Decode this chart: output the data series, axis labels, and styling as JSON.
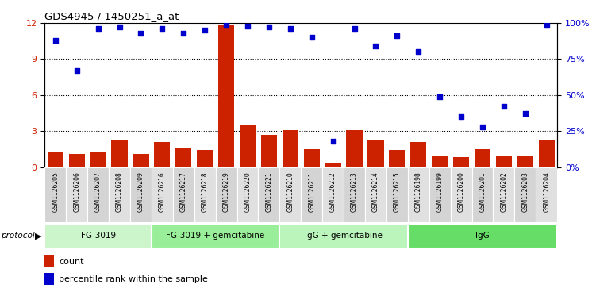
{
  "title": "GDS4945 / 1450251_a_at",
  "samples": [
    "GSM1126205",
    "GSM1126206",
    "GSM1126207",
    "GSM1126208",
    "GSM1126209",
    "GSM1126216",
    "GSM1126217",
    "GSM1126218",
    "GSM1126219",
    "GSM1126220",
    "GSM1126221",
    "GSM1126210",
    "GSM1126211",
    "GSM1126212",
    "GSM1126213",
    "GSM1126214",
    "GSM1126215",
    "GSM1126198",
    "GSM1126199",
    "GSM1126200",
    "GSM1126201",
    "GSM1126202",
    "GSM1126203",
    "GSM1126204"
  ],
  "counts": [
    1.3,
    1.1,
    1.3,
    2.3,
    1.1,
    2.1,
    1.6,
    1.4,
    11.8,
    3.5,
    2.7,
    3.1,
    1.5,
    0.3,
    3.1,
    2.3,
    1.4,
    2.1,
    0.9,
    0.8,
    1.5,
    0.9,
    0.9,
    2.3
  ],
  "percentiles": [
    88,
    67,
    96,
    97,
    93,
    96,
    93,
    95,
    99,
    98,
    97,
    96,
    90,
    18,
    96,
    84,
    91,
    80,
    49,
    35,
    28,
    42,
    37,
    99
  ],
  "groups": [
    {
      "label": "FG-3019",
      "start": 0,
      "end": 5
    },
    {
      "label": "FG-3019 + gemcitabine",
      "start": 5,
      "end": 11
    },
    {
      "label": "IgG + gemcitabine",
      "start": 11,
      "end": 17
    },
    {
      "label": "IgG",
      "start": 17,
      "end": 24
    }
  ],
  "group_colors": [
    "#ccf5cc",
    "#99ee99",
    "#bbf5bb",
    "#66dd66"
  ],
  "bar_color": "#cc2200",
  "dot_color": "#0000cc",
  "left_ylim": [
    0,
    12
  ],
  "left_yticks": [
    0,
    3,
    6,
    9,
    12
  ],
  "right_yticks": [
    0,
    25,
    50,
    75,
    100
  ],
  "right_yticklabels": [
    "0%",
    "25%",
    "50%",
    "75%",
    "100%"
  ],
  "hline_values": [
    3,
    6,
    9
  ],
  "cell_color_even": "#d4d4d4",
  "cell_color_odd": "#e0e0e0"
}
